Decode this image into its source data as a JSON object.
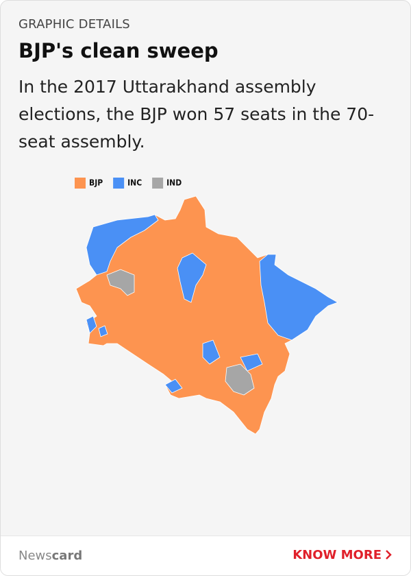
{
  "header": {
    "kicker": "GRAPHIC DETAILS",
    "title": "BJP's clean sweep"
  },
  "body": {
    "text": "In the 2017 Uttarakhand assembly elections, the BJP won 57 seats in the 70-seat assembly."
  },
  "legend": [
    {
      "name": "BJP",
      "color": "#fd9450"
    },
    {
      "name": "INC",
      "color": "#4a90f5"
    },
    {
      "name": "IND",
      "color": "#a6a6a6"
    }
  ],
  "footer": {
    "brand_light": "News",
    "brand_bold": "card",
    "button": "KNOW MORE"
  }
}
